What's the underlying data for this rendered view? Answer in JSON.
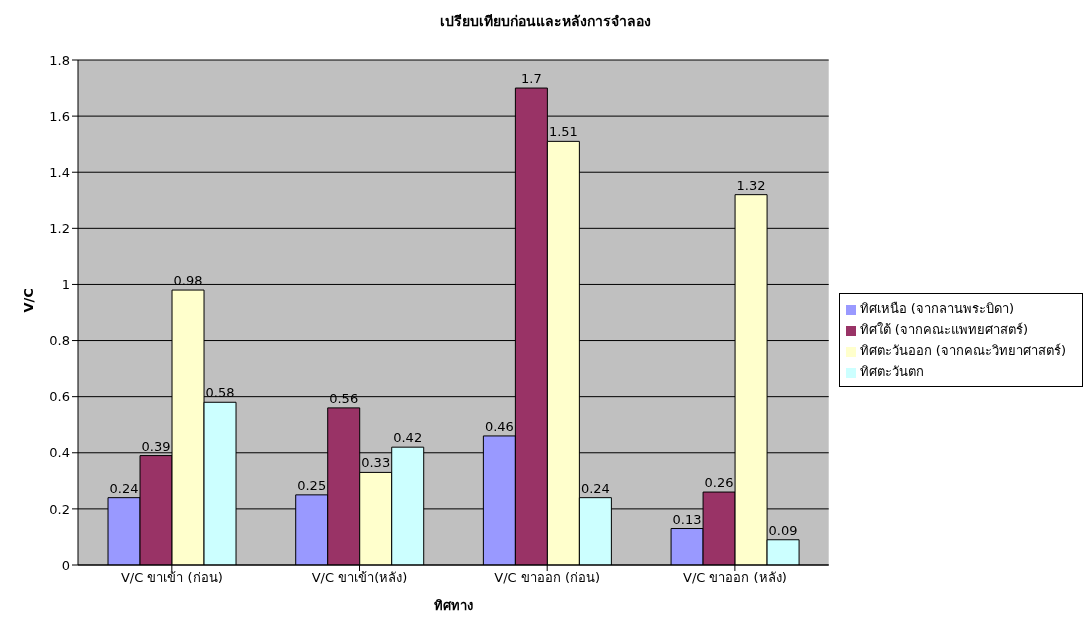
{
  "chart_data": {
    "type": "bar",
    "title": "เปรียบเทียบก่อนและหลังการจำลอง",
    "xlabel": "ทิศทาง",
    "ylabel": "V/C",
    "categories": [
      "V/C ขาเข้า (ก่อน)",
      "V/C ขาเข้า(หลัง)",
      "V/C ขาออก (ก่อน)",
      "V/C ขาออก (หลัง)"
    ],
    "series": [
      {
        "name": "ทิศเหนือ (จากลานพระบิดา)",
        "color": "#9999ff",
        "values": [
          0.24,
          0.25,
          0.46,
          0.13
        ]
      },
      {
        "name": "ทิศใต้ (จากคณะแพทยศาสตร์)",
        "color": "#993366",
        "values": [
          0.39,
          0.56,
          1.7,
          0.26
        ]
      },
      {
        "name": "ทิศตะวันออก (จากคณะวิทยาศาสตร์)",
        "color": "#ffffcc",
        "values": [
          0.98,
          0.33,
          1.51,
          1.32
        ]
      },
      {
        "name": "ทิศตะวันตก",
        "color": "#ccffff",
        "values": [
          0.58,
          0.42,
          0.24,
          0.09
        ]
      }
    ],
    "ylim": [
      0,
      1.8
    ],
    "yticks": [
      0,
      0.2,
      0.4,
      0.6,
      0.8,
      1,
      1.2,
      1.4,
      1.6,
      1.8
    ],
    "grid": "y",
    "legend": "right",
    "data_labels": true
  }
}
